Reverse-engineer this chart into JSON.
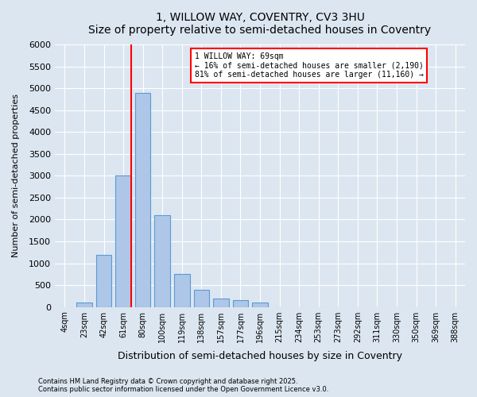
{
  "title": "1, WILLOW WAY, COVENTRY, CV3 3HU",
  "subtitle": "Size of property relative to semi-detached houses in Coventry",
  "xlabel": "Distribution of semi-detached houses by size in Coventry",
  "ylabel": "Number of semi-detached properties",
  "footnote": "Contains HM Land Registry data © Crown copyright and database right 2025.\nContains public sector information licensed under the Open Government Licence v3.0.",
  "bar_color": "#aec6e8",
  "bar_edge_color": "#5b9bd5",
  "background_color": "#dce6f1",
  "plot_bg_color": "#dce6f1",
  "categories": [
    "4sqm",
    "23sqm",
    "42sqm",
    "61sqm",
    "80sqm",
    "100sqm",
    "119sqm",
    "138sqm",
    "157sqm",
    "177sqm",
    "196sqm",
    "215sqm",
    "234sqm",
    "253sqm",
    "273sqm",
    "292sqm",
    "311sqm",
    "330sqm",
    "350sqm",
    "369sqm",
    "388sqm"
  ],
  "values": [
    0,
    100,
    1200,
    3000,
    4900,
    2100,
    750,
    400,
    200,
    150,
    100,
    0,
    0,
    0,
    0,
    0,
    0,
    0,
    0,
    0,
    0
  ],
  "property_label": "1 WILLOW WAY: 69sqm",
  "pct_smaller": 16,
  "count_smaller": 2190,
  "pct_larger": 81,
  "count_larger": 11160,
  "ylim": [
    0,
    6000
  ],
  "yticks": [
    0,
    500,
    1000,
    1500,
    2000,
    2500,
    3000,
    3500,
    4000,
    4500,
    5000,
    5500,
    6000
  ],
  "vline_color": "red",
  "annotation_box_color": "red",
  "vline_x": 3.42
}
